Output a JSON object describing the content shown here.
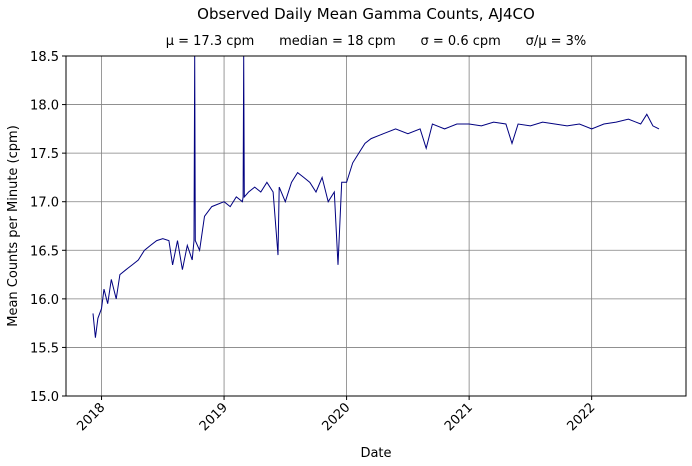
{
  "chart_data": {
    "type": "line",
    "title": "Observed Daily Mean Gamma Counts, AJ4CO",
    "subtitle": "μ = 17.3 cpm      median = 18 cpm      σ = 0.6 cpm      σ/μ = 3%",
    "xlabel": "Date",
    "ylabel": "Mean Counts per Minute (cpm)",
    "xlim": [
      2017.71,
      2022.77
    ],
    "ylim": [
      15.0,
      18.5
    ],
    "x_ticks": [
      2018,
      2019,
      2020,
      2021,
      2022
    ],
    "x_tick_labels": [
      "2018",
      "2019",
      "2020",
      "2021",
      "2022"
    ],
    "y_ticks": [
      15.0,
      15.5,
      16.0,
      16.5,
      17.0,
      17.5,
      18.0,
      18.5
    ],
    "y_tick_labels": [
      "15.0",
      "15.5",
      "16.0",
      "16.5",
      "17.0",
      "17.5",
      "18.0",
      "18.5"
    ],
    "grid": true,
    "color": "#000080",
    "series": [
      {
        "x": [
          2017.93,
          2017.95,
          2017.97,
          2018.0,
          2018.02,
          2018.05,
          2018.08,
          2018.12,
          2018.15,
          2018.2,
          2018.25,
          2018.3,
          2018.35,
          2018.4,
          2018.45,
          2018.5,
          2018.55,
          2018.58,
          2018.62,
          2018.66,
          2018.7,
          2018.74,
          2018.755,
          2018.76,
          2018.765,
          2018.8,
          2018.84,
          2018.9,
          2019.0,
          2019.05,
          2019.1,
          2019.15,
          2019.155,
          2019.16,
          2019.165,
          2019.2,
          2019.25,
          2019.3,
          2019.35,
          2019.4,
          2019.44,
          2019.45,
          2019.5,
          2019.55,
          2019.6,
          2019.65,
          2019.7,
          2019.75,
          2019.8,
          2019.85,
          2019.9,
          2019.93,
          2019.96,
          2020.0,
          2020.05,
          2020.1,
          2020.15,
          2020.2,
          2020.3,
          2020.4,
          2020.5,
          2020.6,
          2020.65,
          2020.7,
          2020.8,
          2020.9,
          2021.0,
          2021.1,
          2021.2,
          2021.3,
          2021.35,
          2021.4,
          2021.5,
          2021.6,
          2021.7,
          2021.8,
          2021.9,
          2022.0,
          2022.1,
          2022.2,
          2022.3,
          2022.4,
          2022.45,
          2022.5,
          2022.55
        ],
        "y": [
          15.85,
          15.6,
          15.8,
          15.9,
          16.1,
          15.95,
          16.2,
          16.0,
          16.25,
          16.3,
          16.35,
          16.4,
          16.5,
          16.55,
          16.6,
          16.62,
          16.6,
          16.35,
          16.6,
          16.3,
          16.55,
          16.4,
          16.6,
          18.5,
          16.6,
          16.5,
          16.85,
          16.95,
          17.0,
          16.95,
          17.05,
          17.0,
          17.05,
          18.5,
          17.05,
          17.1,
          17.15,
          17.1,
          17.2,
          17.1,
          16.45,
          17.15,
          17.0,
          17.2,
          17.3,
          17.25,
          17.2,
          17.1,
          17.25,
          17.0,
          17.1,
          16.35,
          17.2,
          17.2,
          17.4,
          17.5,
          17.6,
          17.65,
          17.7,
          17.75,
          17.7,
          17.75,
          17.55,
          17.8,
          17.75,
          17.8,
          17.8,
          17.78,
          17.82,
          17.8,
          17.6,
          17.8,
          17.78,
          17.82,
          17.8,
          17.78,
          17.8,
          17.75,
          17.8,
          17.82,
          17.85,
          17.8,
          17.9,
          17.78,
          17.75
        ]
      }
    ]
  }
}
